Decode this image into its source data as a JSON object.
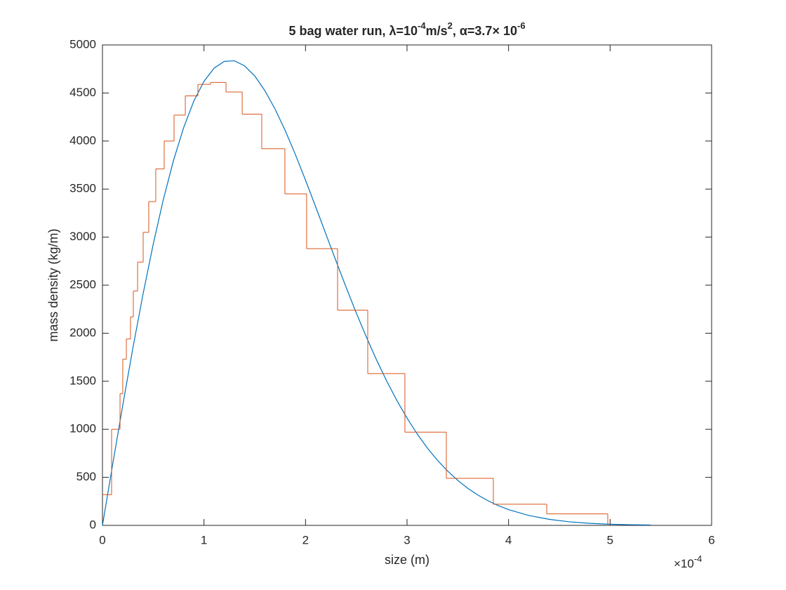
{
  "chart_data": {
    "type": "line",
    "title_parts": [
      "5 bag water run, λ=10",
      "-4",
      "m/s",
      "2",
      ", α=3.7× 10",
      "-6"
    ],
    "xlabel": "size (m)",
    "ylabel": "mass density (kg/m)",
    "x_exponent": [
      "×10",
      "-4"
    ],
    "xlim": [
      0,
      6
    ],
    "xticks": [
      0,
      1,
      2,
      3,
      4,
      5,
      6
    ],
    "ylim": [
      0,
      5000
    ],
    "yticks": [
      0,
      500,
      1000,
      1500,
      2000,
      2500,
      3000,
      3500,
      4000,
      4500,
      5000
    ],
    "series": [
      {
        "color": "#0072BD",
        "style": "line",
        "x": [
          0,
          0.1,
          0.2,
          0.3,
          0.4,
          0.5,
          0.6,
          0.7,
          0.8,
          0.9,
          1.0,
          1.1,
          1.2,
          1.3,
          1.4,
          1.5,
          1.6,
          1.7,
          1.8,
          1.9,
          2.0,
          2.1,
          2.2,
          2.3,
          2.4,
          2.5,
          2.6,
          2.7,
          2.8,
          2.9,
          3.0,
          3.1,
          3.2,
          3.3,
          3.4,
          3.5,
          3.6,
          3.7,
          3.8,
          3.9,
          4.0,
          4.2,
          4.4,
          4.6,
          4.8,
          5.0,
          5.2,
          5.4
        ],
        "values": [
          0,
          631,
          1251,
          1847,
          2409,
          2927,
          3393,
          3799,
          4141,
          4416,
          4622,
          4759,
          4829,
          4835,
          4783,
          4677,
          4524,
          4333,
          4109,
          3860,
          3593,
          3316,
          3034,
          2753,
          2477,
          2211,
          1959,
          1721,
          1501,
          1300,
          1116,
          952,
          805,
          677,
          565,
          468,
          385,
          314,
          255,
          205,
          164,
          103,
          63,
          37,
          21,
          12,
          7,
          4
        ]
      },
      {
        "color": "#D95319",
        "style": "stairs",
        "x": [
          0,
          0.09,
          0.173,
          0.2,
          0.235,
          0.276,
          0.304,
          0.346,
          0.401,
          0.456,
          0.525,
          0.608,
          0.705,
          0.816,
          0.94,
          1.065,
          1.217,
          1.376,
          1.569,
          1.797,
          2.011,
          2.316,
          2.613,
          2.979,
          3.387,
          3.85,
          4.376,
          4.977
        ],
        "values": [
          320,
          1000,
          1370,
          1730,
          1940,
          2170,
          2440,
          2740,
          3050,
          3370,
          3710,
          4000,
          4270,
          4470,
          4590,
          4610,
          4510,
          4280,
          3920,
          3450,
          2880,
          2240,
          1580,
          970,
          490,
          220,
          120,
          0
        ]
      }
    ]
  }
}
